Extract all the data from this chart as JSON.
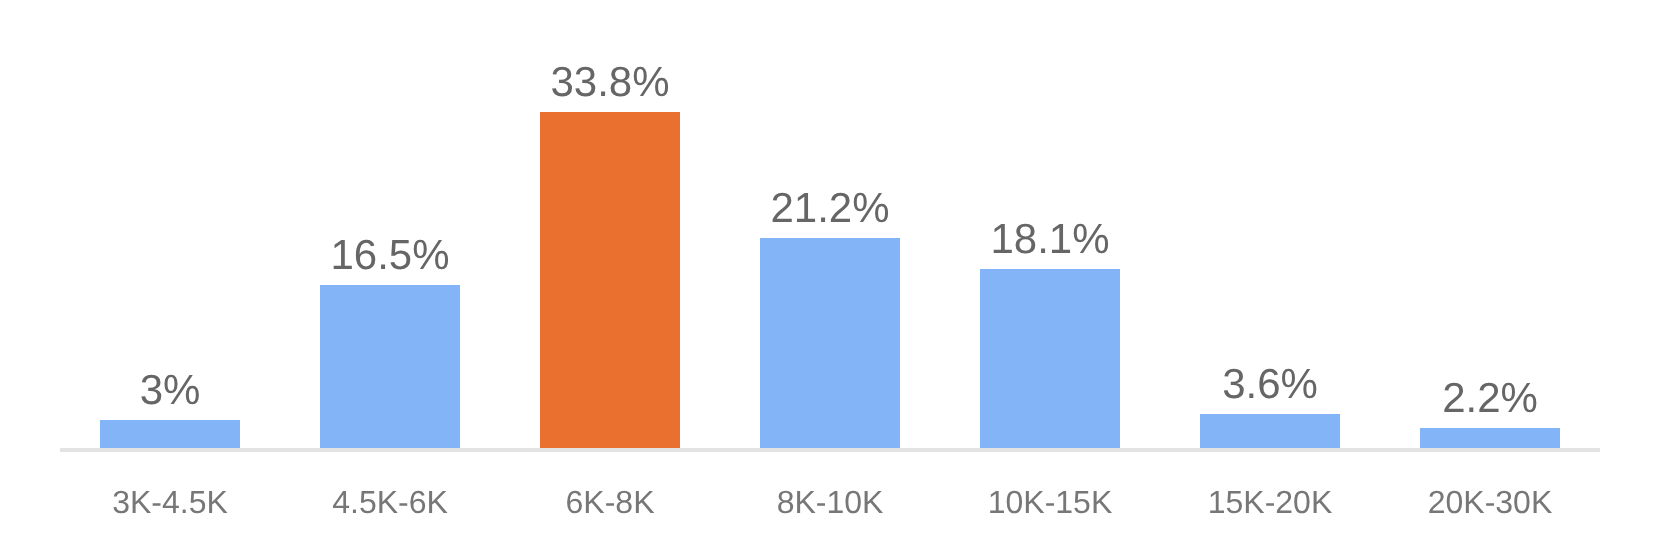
{
  "chart_data": {
    "type": "bar",
    "categories": [
      "3K-4.5K",
      "4.5K-6K",
      "6K-8K",
      "8K-10K",
      "10K-15K",
      "15K-20K",
      "20K-30K"
    ],
    "values": [
      3,
      16.5,
      33.8,
      21.2,
      18.1,
      3.6,
      2.2
    ],
    "colors": [
      "#83b4f7",
      "#83b4f7",
      "#e9702f",
      "#83b4f7",
      "#83b4f7",
      "#83b4f7",
      "#83b4f7"
    ],
    "value_labels": [
      "3%",
      "16.5%",
      "33.8%",
      "21.2%",
      "18.1%",
      "3.6%",
      "2.2%"
    ],
    "tick_labels": "x"
  }
}
